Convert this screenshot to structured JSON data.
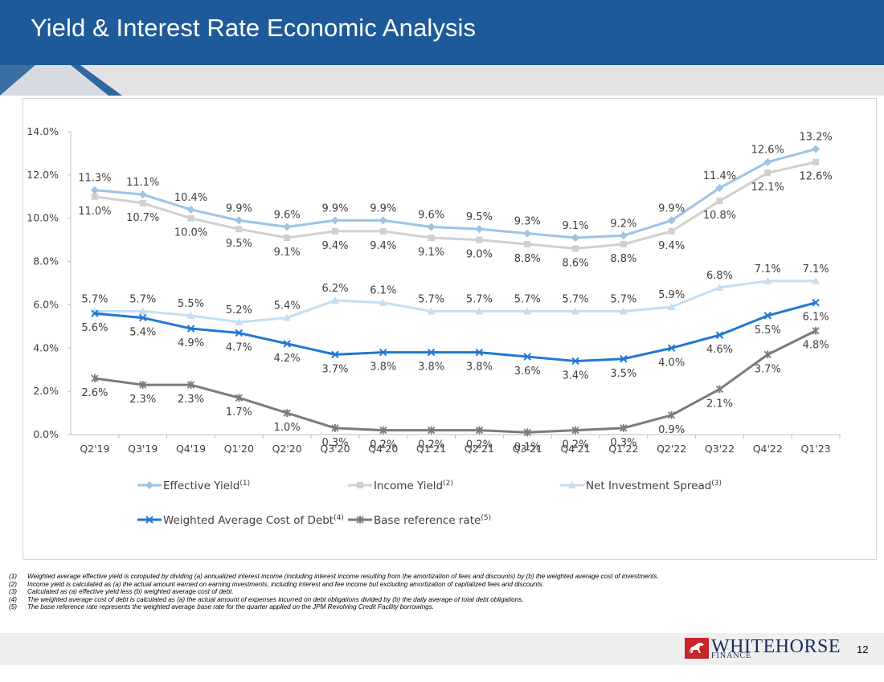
{
  "page": {
    "title": "Yield & Interest Rate Economic Analysis",
    "page_number": "12"
  },
  "logo": {
    "name": "WHITEHORSE",
    "sub": "FINANCE"
  },
  "footnotes": [
    {
      "num": "(1)",
      "text": "Weighted average effective yield is computed by dividing (a) annualized interest income (including interest income resulting from the amortization of fees and discounts) by (b) the weighted average cost of investments."
    },
    {
      "num": "(2)",
      "text": "Income yield is calculated as (a) the actual amount earned on earning investments, including interest and fee income but excluding amortization of capitalized fees and discounts."
    },
    {
      "num": "(3)",
      "text": "Calculated as (a) effective yield less (b) weighted average cost of debt."
    },
    {
      "num": "(4)",
      "text": "The weighted average cost of debt is calculated as (a) the actual amount of expenses incurred on debt obligations divided by (b) the daily average of total debt obligations."
    },
    {
      "num": "(5)",
      "text": "The base reference rate represents the weighted average base rate for the quarter applied on the JPM Revolving Credit Facility borrowings."
    }
  ],
  "colors": {
    "header_blue": "#1e5a99",
    "effective_yield": "#9dc3e6",
    "income_yield": "#d0d0d0",
    "net_spread": "#c5def3",
    "cost_of_debt": "#1f78d1",
    "base_rate": "#7b7b7b"
  },
  "chart_data": {
    "type": "line",
    "categories": [
      "Q2'19",
      "Q3'19",
      "Q4'19",
      "Q1'20",
      "Q2'20",
      "Q3'20",
      "Q4'20",
      "Q1'21",
      "Q2'21",
      "Q3'21",
      "Q4'21",
      "Q1'22",
      "Q2'22",
      "Q3'22",
      "Q4'22",
      "Q1'23"
    ],
    "ylim": [
      0,
      14
    ],
    "yticks": [
      "0.0%",
      "2.0%",
      "4.0%",
      "6.0%",
      "8.0%",
      "10.0%",
      "12.0%",
      "14.0%"
    ],
    "grid": false,
    "legend": "bottom",
    "series": [
      {
        "name": "Effective Yield",
        "sup": "(1)",
        "marker": "diamond",
        "color": "#9dc3e6",
        "label_pos": "above",
        "values": [
          11.3,
          11.1,
          10.4,
          9.9,
          9.6,
          9.9,
          9.9,
          9.6,
          9.5,
          9.3,
          9.1,
          9.2,
          9.9,
          11.4,
          12.6,
          13.2
        ],
        "labels": [
          "11.3%",
          "11.1%",
          "10.4%",
          "9.9%",
          "9.6%",
          "9.9%",
          "9.9%",
          "9.6%",
          "9.5%",
          "9.3%",
          "9.1%",
          "9.2%",
          "9.9%",
          "11.4%",
          "12.6%",
          "13.2%"
        ]
      },
      {
        "name": "Income Yield",
        "sup": "(2)",
        "marker": "square",
        "color": "#d0d0d0",
        "label_pos": "below",
        "values": [
          11.0,
          10.7,
          10.0,
          9.5,
          9.1,
          9.4,
          9.4,
          9.1,
          9.0,
          8.8,
          8.6,
          8.8,
          9.4,
          10.8,
          12.1,
          12.6
        ],
        "labels": [
          "11.0%",
          "10.7%",
          "10.0%",
          "9.5%",
          "9.1%",
          "9.4%",
          "9.4%",
          "9.1%",
          "9.0%",
          "8.8%",
          "8.6%",
          "8.8%",
          "9.4%",
          "10.8%",
          "12.1%",
          "12.6%"
        ]
      },
      {
        "name": "Net Investment Spread",
        "sup": "(3)",
        "marker": "triangle",
        "color": "#c5def3",
        "label_pos": "above",
        "values": [
          5.7,
          5.7,
          5.5,
          5.2,
          5.4,
          6.2,
          6.1,
          5.7,
          5.7,
          5.7,
          5.7,
          5.7,
          5.9,
          6.8,
          7.1,
          7.1
        ],
        "labels": [
          "5.7%",
          "5.7%",
          "5.5%",
          "5.2%",
          "5.4%",
          "6.2%",
          "6.1%",
          "5.7%",
          "5.7%",
          "5.7%",
          "5.7%",
          "5.7%",
          "5.9%",
          "6.8%",
          "7.1%",
          "7.1%"
        ]
      },
      {
        "name": "Weighted Average Cost of Debt",
        "sup": "(4)",
        "marker": "x",
        "color": "#1f78d1",
        "label_pos": "below",
        "values": [
          5.6,
          5.4,
          4.9,
          4.7,
          4.2,
          3.7,
          3.8,
          3.8,
          3.8,
          3.6,
          3.4,
          3.5,
          4.0,
          4.6,
          5.5,
          6.1
        ],
        "labels": [
          "5.6%",
          "5.4%",
          "4.9%",
          "4.7%",
          "4.2%",
          "3.7%",
          "3.8%",
          "3.8%",
          "3.8%",
          "3.6%",
          "3.4%",
          "3.5%",
          "4.0%",
          "4.6%",
          "5.5%",
          "6.1%"
        ]
      },
      {
        "name": "Base reference rate",
        "sup": "(5)",
        "marker": "star",
        "color": "#7b7b7b",
        "label_pos": "below",
        "values": [
          2.6,
          2.3,
          2.3,
          1.7,
          1.0,
          0.3,
          0.2,
          0.2,
          0.2,
          0.1,
          0.2,
          0.3,
          0.9,
          2.1,
          3.7,
          4.8
        ],
        "labels": [
          "2.6%",
          "2.3%",
          "2.3%",
          "1.7%",
          "1.0%",
          "0.3%",
          "0.2%",
          "0.2%",
          "0.2%",
          "0.1%",
          "0.2%",
          "0.3%",
          "0.9%",
          "2.1%",
          "3.7%",
          "4.8%"
        ]
      }
    ]
  }
}
